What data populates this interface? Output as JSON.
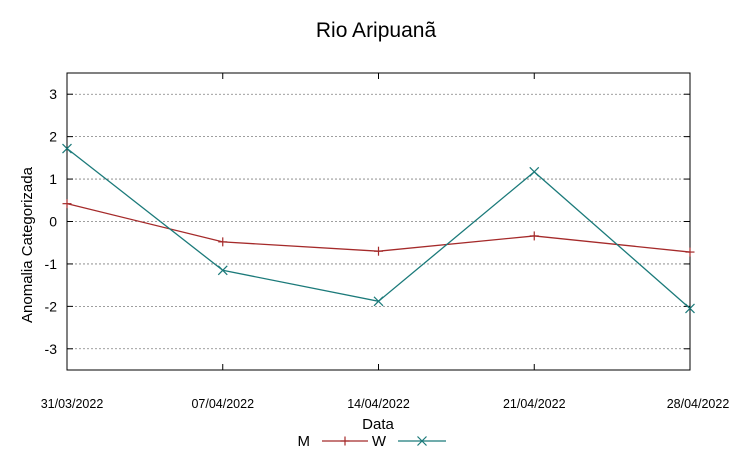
{
  "chart_data": {
    "type": "line",
    "title": "Rio Aripuanã",
    "xlabel": "Data",
    "ylabel": "Anomalia Categorizada",
    "categories": [
      "31/03/2022",
      "07/04/2022",
      "14/04/2022",
      "21/04/2022",
      "28/04/2022"
    ],
    "yticks": [
      "3",
      "2",
      "1",
      "0",
      "-1",
      "-2",
      "-3"
    ],
    "ylim": [
      -3.5,
      3.5
    ],
    "grid": true,
    "legend_position": "bottom-center",
    "series": [
      {
        "name": "M",
        "color": "#a52a2a",
        "marker": "plus",
        "values": [
          0.42,
          -0.48,
          -0.7,
          -0.34,
          -0.72
        ]
      },
      {
        "name": "W",
        "color": "#1b7a7a",
        "marker": "x",
        "values": [
          1.72,
          -1.15,
          -1.88,
          1.17,
          -2.05
        ]
      }
    ]
  }
}
